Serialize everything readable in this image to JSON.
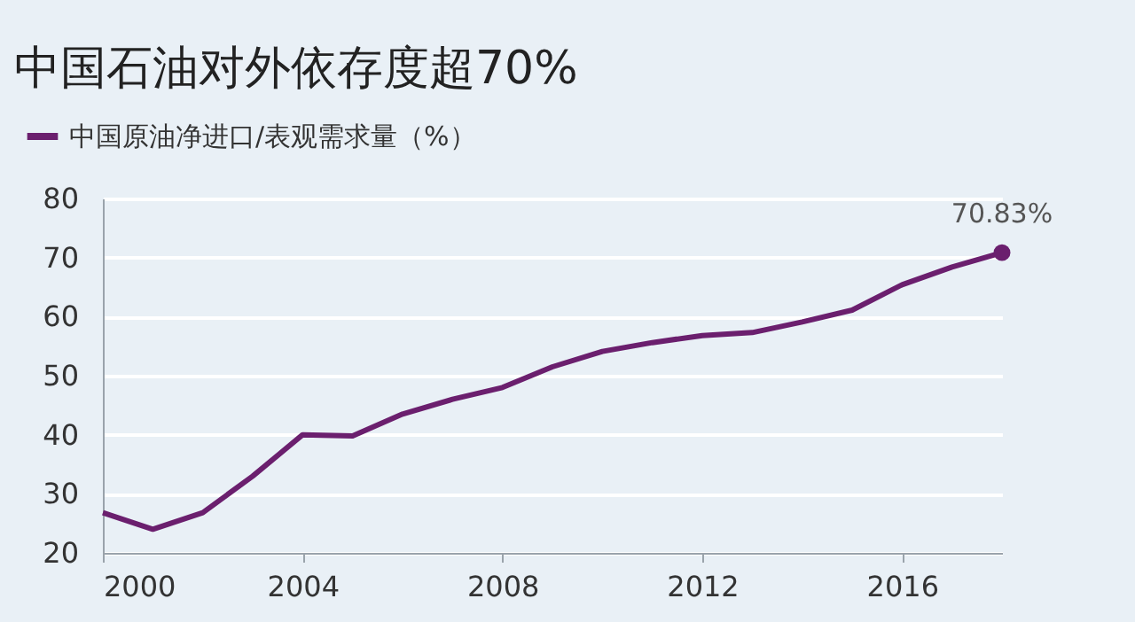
{
  "chart_data": {
    "type": "line",
    "title": "中国石油对外依存度超70%",
    "x": [
      2000,
      2001,
      2002,
      2003,
      2004,
      2005,
      2006,
      2007,
      2008,
      2009,
      2010,
      2011,
      2012,
      2013,
      2014,
      2015,
      2016,
      2017,
      2018
    ],
    "series": [
      {
        "name": "中国原油净进口/表观需求量（%）",
        "color": "#6b1f6e",
        "values": [
          26.8,
          24.0,
          26.8,
          33.0,
          40.0,
          39.8,
          43.5,
          46.0,
          48.0,
          51.5,
          54.1,
          55.6,
          56.8,
          57.3,
          59.1,
          61.1,
          65.4,
          68.4,
          70.83
        ]
      }
    ],
    "annotations": [
      {
        "text": "70.83%",
        "x": 2018,
        "y": 70.83
      }
    ],
    "xlim": [
      2000,
      2018
    ],
    "xticks": [
      2000,
      2004,
      2008,
      2012,
      2016
    ],
    "ylim": [
      20,
      80
    ],
    "yticks": [
      20,
      30,
      40,
      50,
      60,
      70,
      80
    ],
    "grid": "y",
    "legend": "top left",
    "marker": "none",
    "line_style": "solid"
  }
}
